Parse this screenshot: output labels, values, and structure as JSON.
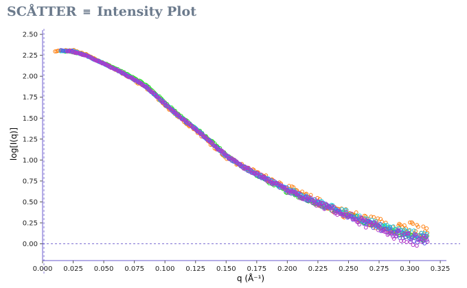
{
  "app": {
    "title_prefix": "SCÅTTER",
    "menu_icon": "≡",
    "title_rest": "Intensity Plot",
    "title_color": "#6b7a8c"
  },
  "chart_data": {
    "type": "scatter",
    "title": "",
    "xlabel": "q (Å⁻¹)",
    "ylabel": "log[I(q)]",
    "xlim": [
      0.0,
      0.33
    ],
    "ylim": [
      -0.2,
      2.55
    ],
    "xticks": [
      0.0,
      0.025,
      0.05,
      0.075,
      0.1,
      0.125,
      0.15,
      0.175,
      0.2,
      0.225,
      0.25,
      0.275,
      0.3,
      0.325
    ],
    "yticks": [
      0.0,
      0.25,
      0.5,
      0.75,
      1.0,
      1.25,
      1.5,
      1.75,
      2.0,
      2.25,
      2.5
    ],
    "xtick_labels": [
      "0.000",
      "0.025",
      "0.050",
      "0.075",
      "0.100",
      "0.125",
      "0.150",
      "0.175",
      "0.200",
      "0.225",
      "0.250",
      "0.275",
      "0.300",
      "0.325"
    ],
    "ytick_labels": [
      "0.00",
      "0.25",
      "0.50",
      "0.75",
      "1.00",
      "1.25",
      "1.50",
      "1.75",
      "2.00",
      "2.25",
      "2.50"
    ],
    "grid": false,
    "reference_lines": {
      "x": 0.0,
      "y": 0.0,
      "style": "dashed",
      "color": "#6a5acd"
    },
    "marker": "open-circle",
    "series": [
      {
        "color": "#22dd22",
        "q_range": [
          0.015,
          0.315
        ],
        "noise_at_high_q": 0.035,
        "points": [
          [
            0.015,
            2.3
          ],
          [
            0.025,
            2.29
          ],
          [
            0.035,
            2.25
          ],
          [
            0.05,
            2.16
          ],
          [
            0.06,
            2.09
          ],
          [
            0.075,
            1.98
          ],
          [
            0.085,
            1.89
          ],
          [
            0.1,
            1.69
          ],
          [
            0.11,
            1.56
          ],
          [
            0.125,
            1.38
          ],
          [
            0.14,
            1.2
          ],
          [
            0.15,
            1.06
          ],
          [
            0.16,
            0.96
          ],
          [
            0.175,
            0.82
          ],
          [
            0.19,
            0.7
          ],
          [
            0.2,
            0.62
          ],
          [
            0.225,
            0.48
          ],
          [
            0.25,
            0.34
          ],
          [
            0.275,
            0.2
          ],
          [
            0.3,
            0.1
          ],
          [
            0.315,
            0.06
          ]
        ]
      },
      {
        "color": "#ff7f0e",
        "q_range": [
          0.01,
          0.315
        ],
        "noise_at_high_q": 0.09,
        "points": [
          [
            0.01,
            2.3
          ],
          [
            0.025,
            2.31
          ],
          [
            0.035,
            2.26
          ],
          [
            0.05,
            2.15
          ],
          [
            0.06,
            2.08
          ],
          [
            0.075,
            1.95
          ],
          [
            0.085,
            1.86
          ],
          [
            0.1,
            1.66
          ],
          [
            0.11,
            1.53
          ],
          [
            0.125,
            1.36
          ],
          [
            0.14,
            1.17
          ],
          [
            0.15,
            1.04
          ],
          [
            0.16,
            0.95
          ],
          [
            0.175,
            0.84
          ],
          [
            0.19,
            0.74
          ],
          [
            0.2,
            0.67
          ],
          [
            0.225,
            0.5
          ],
          [
            0.25,
            0.35
          ],
          [
            0.275,
            0.24
          ],
          [
            0.3,
            0.18
          ],
          [
            0.315,
            0.12
          ]
        ]
      },
      {
        "color": "#1ec8e6",
        "q_range": [
          0.015,
          0.315
        ],
        "noise_at_high_q": 0.05,
        "points": [
          [
            0.015,
            2.3
          ],
          [
            0.025,
            2.3
          ],
          [
            0.035,
            2.25
          ],
          [
            0.05,
            2.15
          ],
          [
            0.06,
            2.08
          ],
          [
            0.075,
            1.96
          ],
          [
            0.085,
            1.87
          ],
          [
            0.1,
            1.67
          ],
          [
            0.11,
            1.54
          ],
          [
            0.125,
            1.37
          ],
          [
            0.14,
            1.18
          ],
          [
            0.15,
            1.05
          ],
          [
            0.16,
            0.95
          ],
          [
            0.175,
            0.83
          ],
          [
            0.19,
            0.72
          ],
          [
            0.2,
            0.65
          ],
          [
            0.225,
            0.5
          ],
          [
            0.25,
            0.36
          ],
          [
            0.275,
            0.22
          ],
          [
            0.3,
            0.12
          ],
          [
            0.315,
            0.08
          ]
        ]
      },
      {
        "color": "#5b5be6",
        "q_range": [
          0.015,
          0.315
        ],
        "noise_at_high_q": 0.05,
        "points": [
          [
            0.015,
            2.31
          ],
          [
            0.025,
            2.3
          ],
          [
            0.035,
            2.25
          ],
          [
            0.05,
            2.15
          ],
          [
            0.06,
            2.08
          ],
          [
            0.075,
            1.96
          ],
          [
            0.085,
            1.87
          ],
          [
            0.1,
            1.67
          ],
          [
            0.11,
            1.54
          ],
          [
            0.125,
            1.37
          ],
          [
            0.14,
            1.18
          ],
          [
            0.15,
            1.05
          ],
          [
            0.16,
            0.95
          ],
          [
            0.175,
            0.83
          ],
          [
            0.19,
            0.72
          ],
          [
            0.2,
            0.64
          ],
          [
            0.225,
            0.48
          ],
          [
            0.25,
            0.34
          ],
          [
            0.275,
            0.2
          ],
          [
            0.3,
            0.08
          ],
          [
            0.315,
            0.04
          ]
        ]
      },
      {
        "color": "#b23ac8",
        "q_range": [
          0.02,
          0.315
        ],
        "noise_at_high_q": 0.07,
        "points": [
          [
            0.02,
            2.3
          ],
          [
            0.025,
            2.29
          ],
          [
            0.035,
            2.25
          ],
          [
            0.05,
            2.15
          ],
          [
            0.06,
            2.08
          ],
          [
            0.075,
            1.96
          ],
          [
            0.085,
            1.87
          ],
          [
            0.1,
            1.67
          ],
          [
            0.11,
            1.54
          ],
          [
            0.125,
            1.37
          ],
          [
            0.14,
            1.18
          ],
          [
            0.15,
            1.05
          ],
          [
            0.16,
            0.95
          ],
          [
            0.175,
            0.83
          ],
          [
            0.19,
            0.72
          ],
          [
            0.2,
            0.64
          ],
          [
            0.225,
            0.48
          ],
          [
            0.25,
            0.33
          ],
          [
            0.275,
            0.18
          ],
          [
            0.3,
            0.06
          ],
          [
            0.315,
            0.02
          ]
        ]
      }
    ]
  }
}
